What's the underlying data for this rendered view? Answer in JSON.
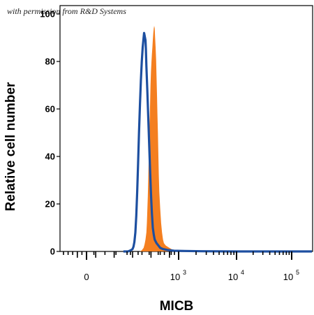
{
  "chart_data": {
    "type": "area",
    "credit": "with permission from R&D Systems",
    "xlabel": "MICB",
    "ylabel": "Relative cell number",
    "ylim": [
      0,
      100
    ],
    "y_ticks": [
      "0",
      "20",
      "40",
      "60",
      "80",
      "100"
    ],
    "x_ticks": [
      {
        "base": "0",
        "exp": ""
      },
      {
        "base": "10",
        "exp": "3"
      },
      {
        "base": "10",
        "exp": "4"
      },
      {
        "base": "10",
        "exp": "5"
      }
    ],
    "series": [
      {
        "style": "filled",
        "color": "#f47f20",
        "points": [
          [
            0.58,
            0
          ],
          [
            0.6,
            0.5
          ],
          [
            0.62,
            1.5
          ],
          [
            0.63,
            3
          ],
          [
            0.64,
            5
          ],
          [
            0.65,
            8
          ],
          [
            0.655,
            12
          ],
          [
            0.66,
            17
          ],
          [
            0.665,
            23
          ],
          [
            0.67,
            30
          ],
          [
            0.675,
            38
          ],
          [
            0.68,
            46
          ],
          [
            0.685,
            54
          ],
          [
            0.69,
            62
          ],
          [
            0.695,
            70
          ],
          [
            0.7,
            76
          ],
          [
            0.705,
            80
          ],
          [
            0.71,
            83
          ],
          [
            0.715,
            86
          ],
          [
            0.72,
            89
          ],
          [
            0.725,
            92
          ],
          [
            0.73,
            94
          ],
          [
            0.735,
            95
          ],
          [
            0.74,
            94
          ],
          [
            0.745,
            90
          ],
          [
            0.75,
            86
          ],
          [
            0.755,
            81
          ],
          [
            0.76,
            74
          ],
          [
            0.765,
            66
          ],
          [
            0.77,
            58
          ],
          [
            0.775,
            50
          ],
          [
            0.78,
            40
          ],
          [
            0.785,
            32
          ],
          [
            0.79,
            25
          ],
          [
            0.8,
            18
          ],
          [
            0.81,
            12
          ],
          [
            0.82,
            8
          ],
          [
            0.83,
            5
          ],
          [
            0.84,
            3.5
          ],
          [
            0.86,
            2.5
          ],
          [
            0.88,
            2
          ],
          [
            0.9,
            1.5
          ],
          [
            0.93,
            0.8
          ],
          [
            0.96,
            0.3
          ],
          [
            1.0,
            0
          ]
        ]
      },
      {
        "style": "outline",
        "color": "#1d4fa0",
        "points": [
          [
            0.4,
            0
          ],
          [
            0.45,
            0
          ],
          [
            0.48,
            0.5
          ],
          [
            0.5,
            1
          ],
          [
            0.51,
            2
          ],
          [
            0.52,
            4
          ],
          [
            0.53,
            8
          ],
          [
            0.54,
            15
          ],
          [
            0.55,
            25
          ],
          [
            0.56,
            37
          ],
          [
            0.57,
            50
          ],
          [
            0.58,
            62
          ],
          [
            0.59,
            72
          ],
          [
            0.6,
            80
          ],
          [
            0.61,
            86
          ],
          [
            0.62,
            90
          ],
          [
            0.625,
            92
          ],
          [
            0.63,
            91
          ],
          [
            0.635,
            90
          ],
          [
            0.64,
            89
          ],
          [
            0.645,
            85
          ],
          [
            0.65,
            78
          ],
          [
            0.66,
            68
          ],
          [
            0.67,
            57
          ],
          [
            0.68,
            45
          ],
          [
            0.69,
            34
          ],
          [
            0.7,
            24
          ],
          [
            0.71,
            16
          ],
          [
            0.72,
            10
          ],
          [
            0.73,
            7
          ],
          [
            0.74,
            5
          ],
          [
            0.76,
            3.5
          ],
          [
            0.78,
            2.5
          ],
          [
            0.8,
            1.5
          ],
          [
            0.83,
            1
          ],
          [
            0.88,
            0.6
          ],
          [
            0.95,
            0.3
          ],
          [
            1.1,
            0.2
          ],
          [
            1.4,
            0.1
          ],
          [
            2.0,
            0
          ],
          [
            3.0,
            0
          ]
        ]
      }
    ]
  }
}
